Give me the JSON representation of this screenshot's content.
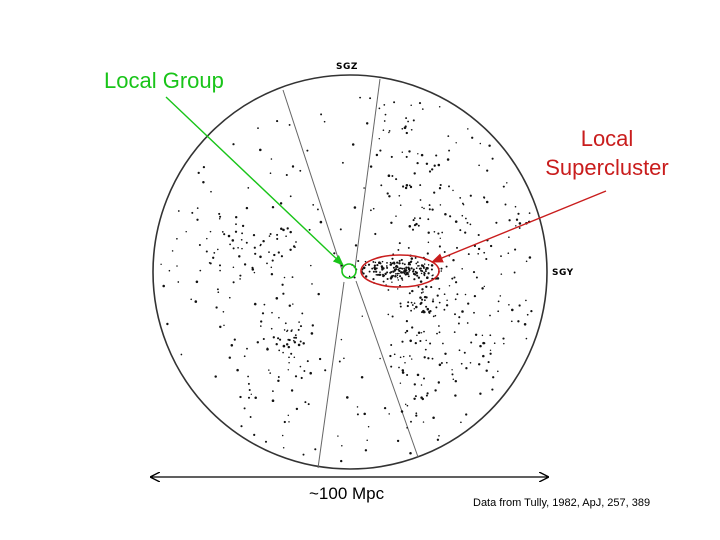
{
  "annotations": {
    "local_group": {
      "label": "Local Group",
      "color": "#19c419"
    },
    "local_supercluster": {
      "lines": [
        "Local",
        "Supercluster"
      ],
      "color": "#c91d1d"
    }
  },
  "axes": {
    "top": "SGZ",
    "right": "SGY"
  },
  "scale": {
    "label": "~100 Mpc"
  },
  "credit": "Data from Tully, 1982, ApJ, 257, 389",
  "colors": {
    "points": "#111111",
    "outline": "#333333",
    "zone_lines": "#666666"
  }
}
